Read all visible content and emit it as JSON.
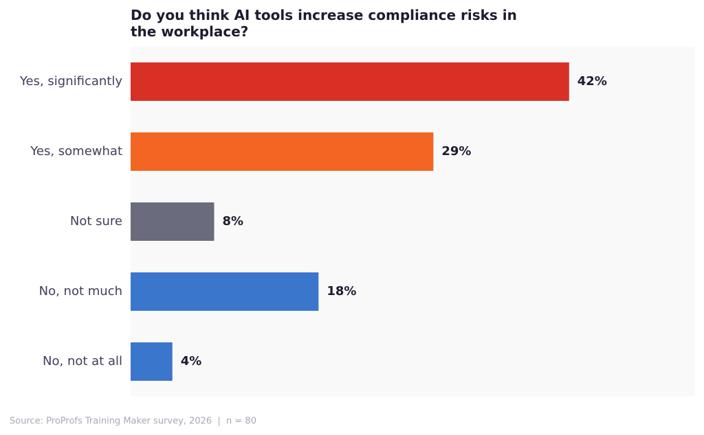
{
  "chart_data": {
    "type": "bar",
    "orientation": "horizontal",
    "title": "Do you think AI tools increase compliance risks in the workplace?",
    "categories": [
      "Yes, significantly",
      "Yes, somewhat",
      "Not sure",
      "No, not much",
      "No, not at all"
    ],
    "values": [
      42,
      29,
      8,
      18,
      4
    ],
    "value_labels": [
      "42%",
      "29%",
      "8%",
      "18%",
      "4%"
    ],
    "colors": [
      "#d93025",
      "#f26522",
      "#6b6b7e",
      "#3a76cc",
      "#3a76cc"
    ],
    "xlim": [
      0,
      54
    ],
    "source": "Source: ProProfs Training Maker survey, 2026  |  n = 80"
  }
}
